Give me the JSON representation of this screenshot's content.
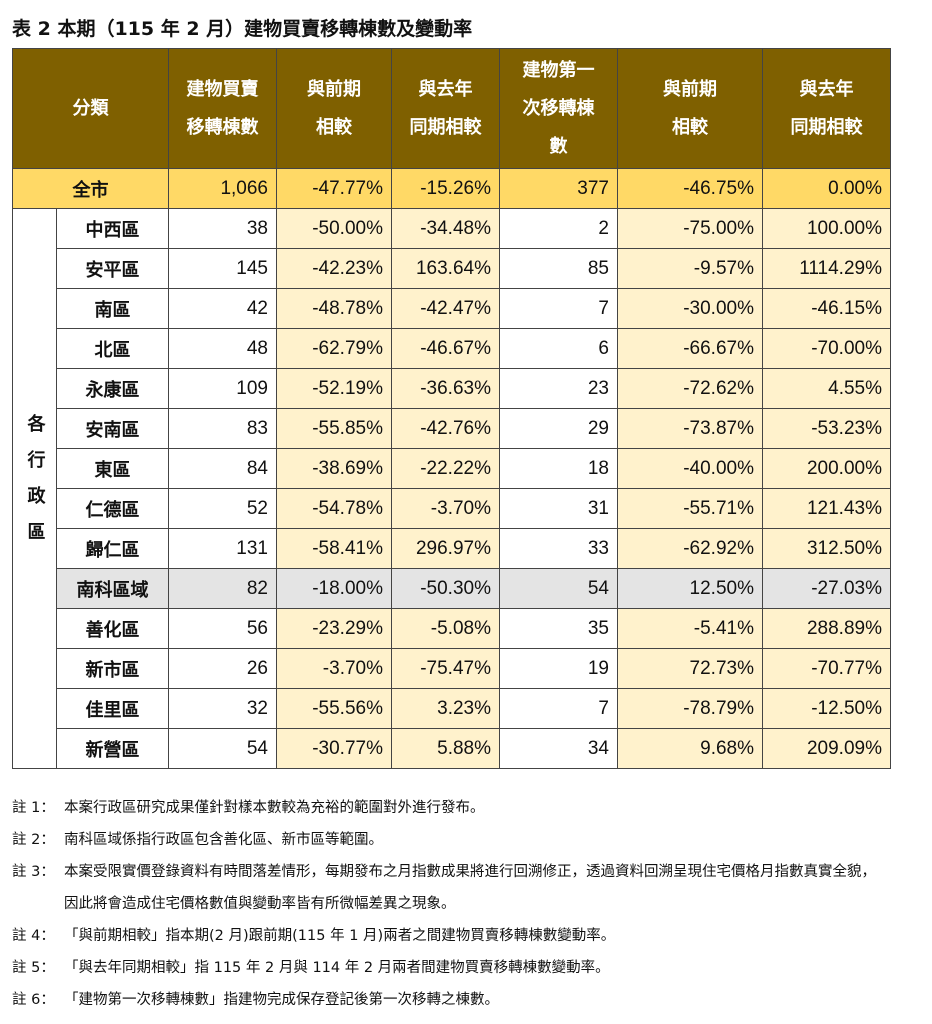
{
  "title": "表 2 本期（115 年 2 月）建物買賣移轉棟數及變動率",
  "table": {
    "header": [
      [
        "分類"
      ],
      [
        "建物買賣",
        "移轉棟數"
      ],
      [
        "與前期",
        "相較"
      ],
      [
        "與去年",
        "同期相較"
      ],
      [
        "建物第一",
        "次移轉棟",
        "數"
      ],
      [
        "與前期",
        "相較"
      ],
      [
        "與去年",
        "同期相較"
      ]
    ],
    "total_row": [
      "全市",
      "1,066",
      "-47.77%",
      "-15.26%",
      "377",
      "-46.75%",
      "0.00%"
    ],
    "group_label": "各行政區",
    "rows": [
      [
        "中西區",
        "38",
        "-50.00%",
        "-34.48%",
        "2",
        "-75.00%",
        "100.00%"
      ],
      [
        "安平區",
        "145",
        "-42.23%",
        "163.64%",
        "85",
        "-9.57%",
        "1114.29%"
      ],
      [
        "南區",
        "42",
        "-48.78%",
        "-42.47%",
        "7",
        "-30.00%",
        "-46.15%"
      ],
      [
        "北區",
        "48",
        "-62.79%",
        "-46.67%",
        "6",
        "-66.67%",
        "-70.00%"
      ],
      [
        "永康區",
        "109",
        "-52.19%",
        "-36.63%",
        "23",
        "-72.62%",
        "4.55%"
      ],
      [
        "安南區",
        "83",
        "-55.85%",
        "-42.76%",
        "29",
        "-73.87%",
        "-53.23%"
      ],
      [
        "東區",
        "84",
        "-38.69%",
        "-22.22%",
        "18",
        "-40.00%",
        "200.00%"
      ],
      [
        "仁德區",
        "52",
        "-54.78%",
        "-3.70%",
        "31",
        "-55.71%",
        "121.43%"
      ],
      [
        "歸仁區",
        "131",
        "-58.41%",
        "296.97%",
        "33",
        "-62.92%",
        "312.50%"
      ],
      [
        "南科區域",
        "82",
        "-18.00%",
        "-50.30%",
        "54",
        "12.50%",
        "-27.03%"
      ],
      [
        "善化區",
        "56",
        "-23.29%",
        "-5.08%",
        "35",
        "-5.41%",
        "288.89%"
      ],
      [
        "新市區",
        "26",
        "-3.70%",
        "-75.47%",
        "19",
        "72.73%",
        "-70.77%"
      ],
      [
        "佳里區",
        "32",
        "-55.56%",
        "3.23%",
        "7",
        "-78.79%",
        "-12.50%"
      ],
      [
        "新營區",
        "54",
        "-30.77%",
        "5.88%",
        "34",
        "9.68%",
        "209.09%"
      ]
    ]
  },
  "notes": [
    {
      "label": "註 1：",
      "text": "本案行政區研究成果僅針對樣本數較為充裕的範圍對外進行發布。"
    },
    {
      "label": "註 2：",
      "text": "南科區域係指行政區包含善化區、新市區等範圍。"
    },
    {
      "label": "註 3：",
      "text": "本案受限實價登錄資料有時間落差情形，每期發布之月指數成果將進行回溯修正，透過資料回溯呈現住宅價格月指數真實全貌，因此將會造成住宅價格數值與變動率皆有所微幅差異之現象。"
    },
    {
      "label": "註 4：",
      "text": "「與前期相較」指本期(2 月)跟前期(115 年 1 月)兩者之間建物買賣移轉棟數變動率。"
    },
    {
      "label": "註 5：",
      "text": "「與去年同期相較」指 115 年 2 月與 114 年 2 月兩者間建物買賣移轉棟數變動率。"
    },
    {
      "label": "註 6：",
      "text": "「建物第一次移轉棟數」指建物完成保存登記後第一次移轉之棟數。"
    }
  ]
}
